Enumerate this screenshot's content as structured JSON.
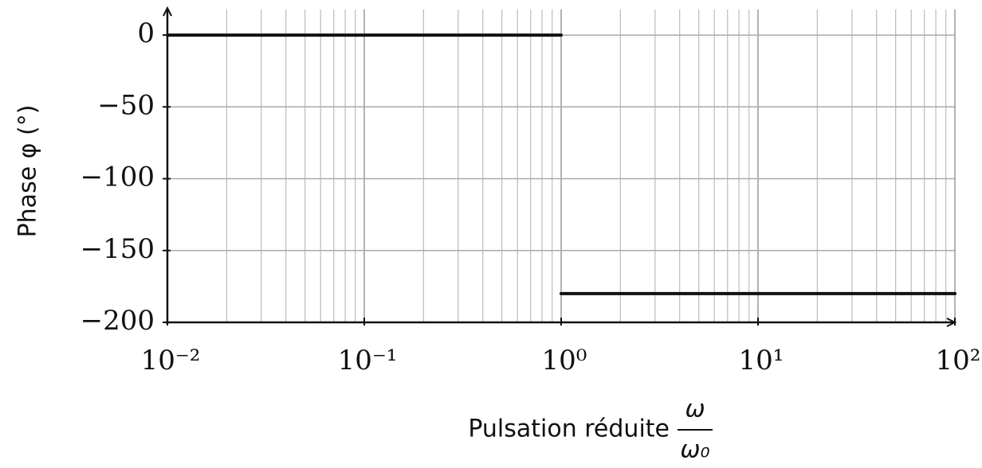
{
  "chart_data": {
    "type": "line",
    "y_label": "Phase φ (°)",
    "x_label": {
      "text": "Pulsation réduite",
      "fraction": [
        "ω",
        "ω₀"
      ]
    },
    "x": [
      0.01,
      1,
      1,
      1,
      100
    ],
    "series": [
      {
        "color": "#111111",
        "values": [
          0,
          0,
          null,
          -180,
          -180
        ]
      }
    ],
    "x_log": true,
    "xlim": [
      0.01,
      100
    ],
    "xticks": [
      {
        "value": 0.01,
        "label": "10⁻²"
      },
      {
        "value": 0.1,
        "label": "10⁻¹"
      },
      {
        "value": 1,
        "label": "10⁰"
      },
      {
        "value": 10,
        "label": "10¹"
      },
      {
        "value": 100,
        "label": "10²"
      }
    ],
    "ylim": [
      -200,
      15
    ],
    "yticks": [
      0,
      {
        "value": -50,
        "label": "−50"
      },
      {
        "value": -100,
        "label": "−100"
      },
      {
        "value": -150,
        "label": "−150"
      },
      {
        "value": -200,
        "label": "−200"
      }
    ],
    "grid": true
  }
}
